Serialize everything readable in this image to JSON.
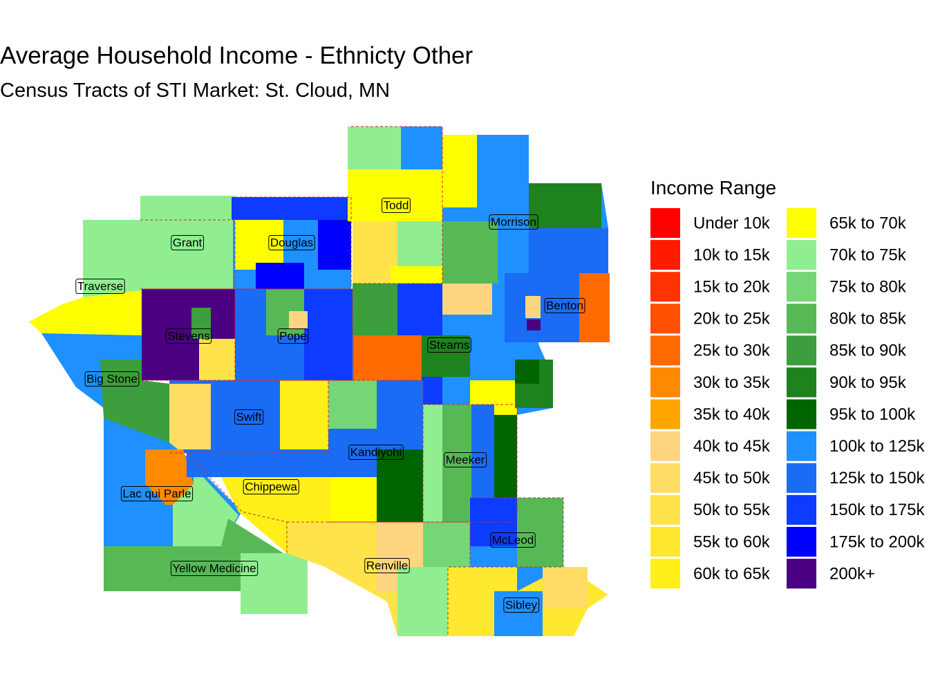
{
  "title": "Average Household Income - Ethnicty Other",
  "subtitle": "Census Tracts of STI Market: St. Cloud, MN",
  "legend": {
    "title": "Income Range",
    "items": [
      {
        "label": "Under 10k",
        "color": "#ff0000"
      },
      {
        "label": "10k to 15k",
        "color": "#ff1a00"
      },
      {
        "label": "15k to 20k",
        "color": "#ff3300"
      },
      {
        "label": "20k to 25k",
        "color": "#ff5000"
      },
      {
        "label": "25k to 30k",
        "color": "#ff6a00"
      },
      {
        "label": "30k to 35k",
        "color": "#ff8a00"
      },
      {
        "label": "35k to 40k",
        "color": "#ffa500"
      },
      {
        "label": "40k to 45k",
        "color": "#ffd580"
      },
      {
        "label": "45k to 50k",
        "color": "#ffdc64"
      },
      {
        "label": "50k to 55k",
        "color": "#ffe34a"
      },
      {
        "label": "55k to 60k",
        "color": "#ffe930"
      },
      {
        "label": "60k to 65k",
        "color": "#fff01a"
      },
      {
        "label": "65k to 70k",
        "color": "#ffff00"
      },
      {
        "label": "70k to 75k",
        "color": "#90ee90"
      },
      {
        "label": "75k to 80k",
        "color": "#74d674"
      },
      {
        "label": "80k to 85k",
        "color": "#56b956"
      },
      {
        "label": "85k to 90k",
        "color": "#3c9e3c"
      },
      {
        "label": "90k to 95k",
        "color": "#1e821e"
      },
      {
        "label": "95k to 100k",
        "color": "#006400"
      },
      {
        "label": "100k to 125k",
        "color": "#1e90ff"
      },
      {
        "label": "125k to 150k",
        "color": "#1a6cf5"
      },
      {
        "label": "150k to 175k",
        "color": "#0d3bff"
      },
      {
        "label": "175k to 200k",
        "color": "#0000ff"
      },
      {
        "label": "200k+",
        "color": "#4b0082"
      }
    ]
  },
  "counties": [
    {
      "name": "Todd"
    },
    {
      "name": "Morrison"
    },
    {
      "name": "Grant"
    },
    {
      "name": "Douglas"
    },
    {
      "name": "Traverse"
    },
    {
      "name": "Benton"
    },
    {
      "name": "Stevens"
    },
    {
      "name": "Pope"
    },
    {
      "name": "Stearns"
    },
    {
      "name": "Big Stone"
    },
    {
      "name": "Swift"
    },
    {
      "name": "Kandiyohi"
    },
    {
      "name": "Meeker"
    },
    {
      "name": "Lac qui Parle"
    },
    {
      "name": "Chippewa"
    },
    {
      "name": "McLeod"
    },
    {
      "name": "Yellow Medicine"
    },
    {
      "name": "Renville"
    },
    {
      "name": "Sibley"
    }
  ]
}
